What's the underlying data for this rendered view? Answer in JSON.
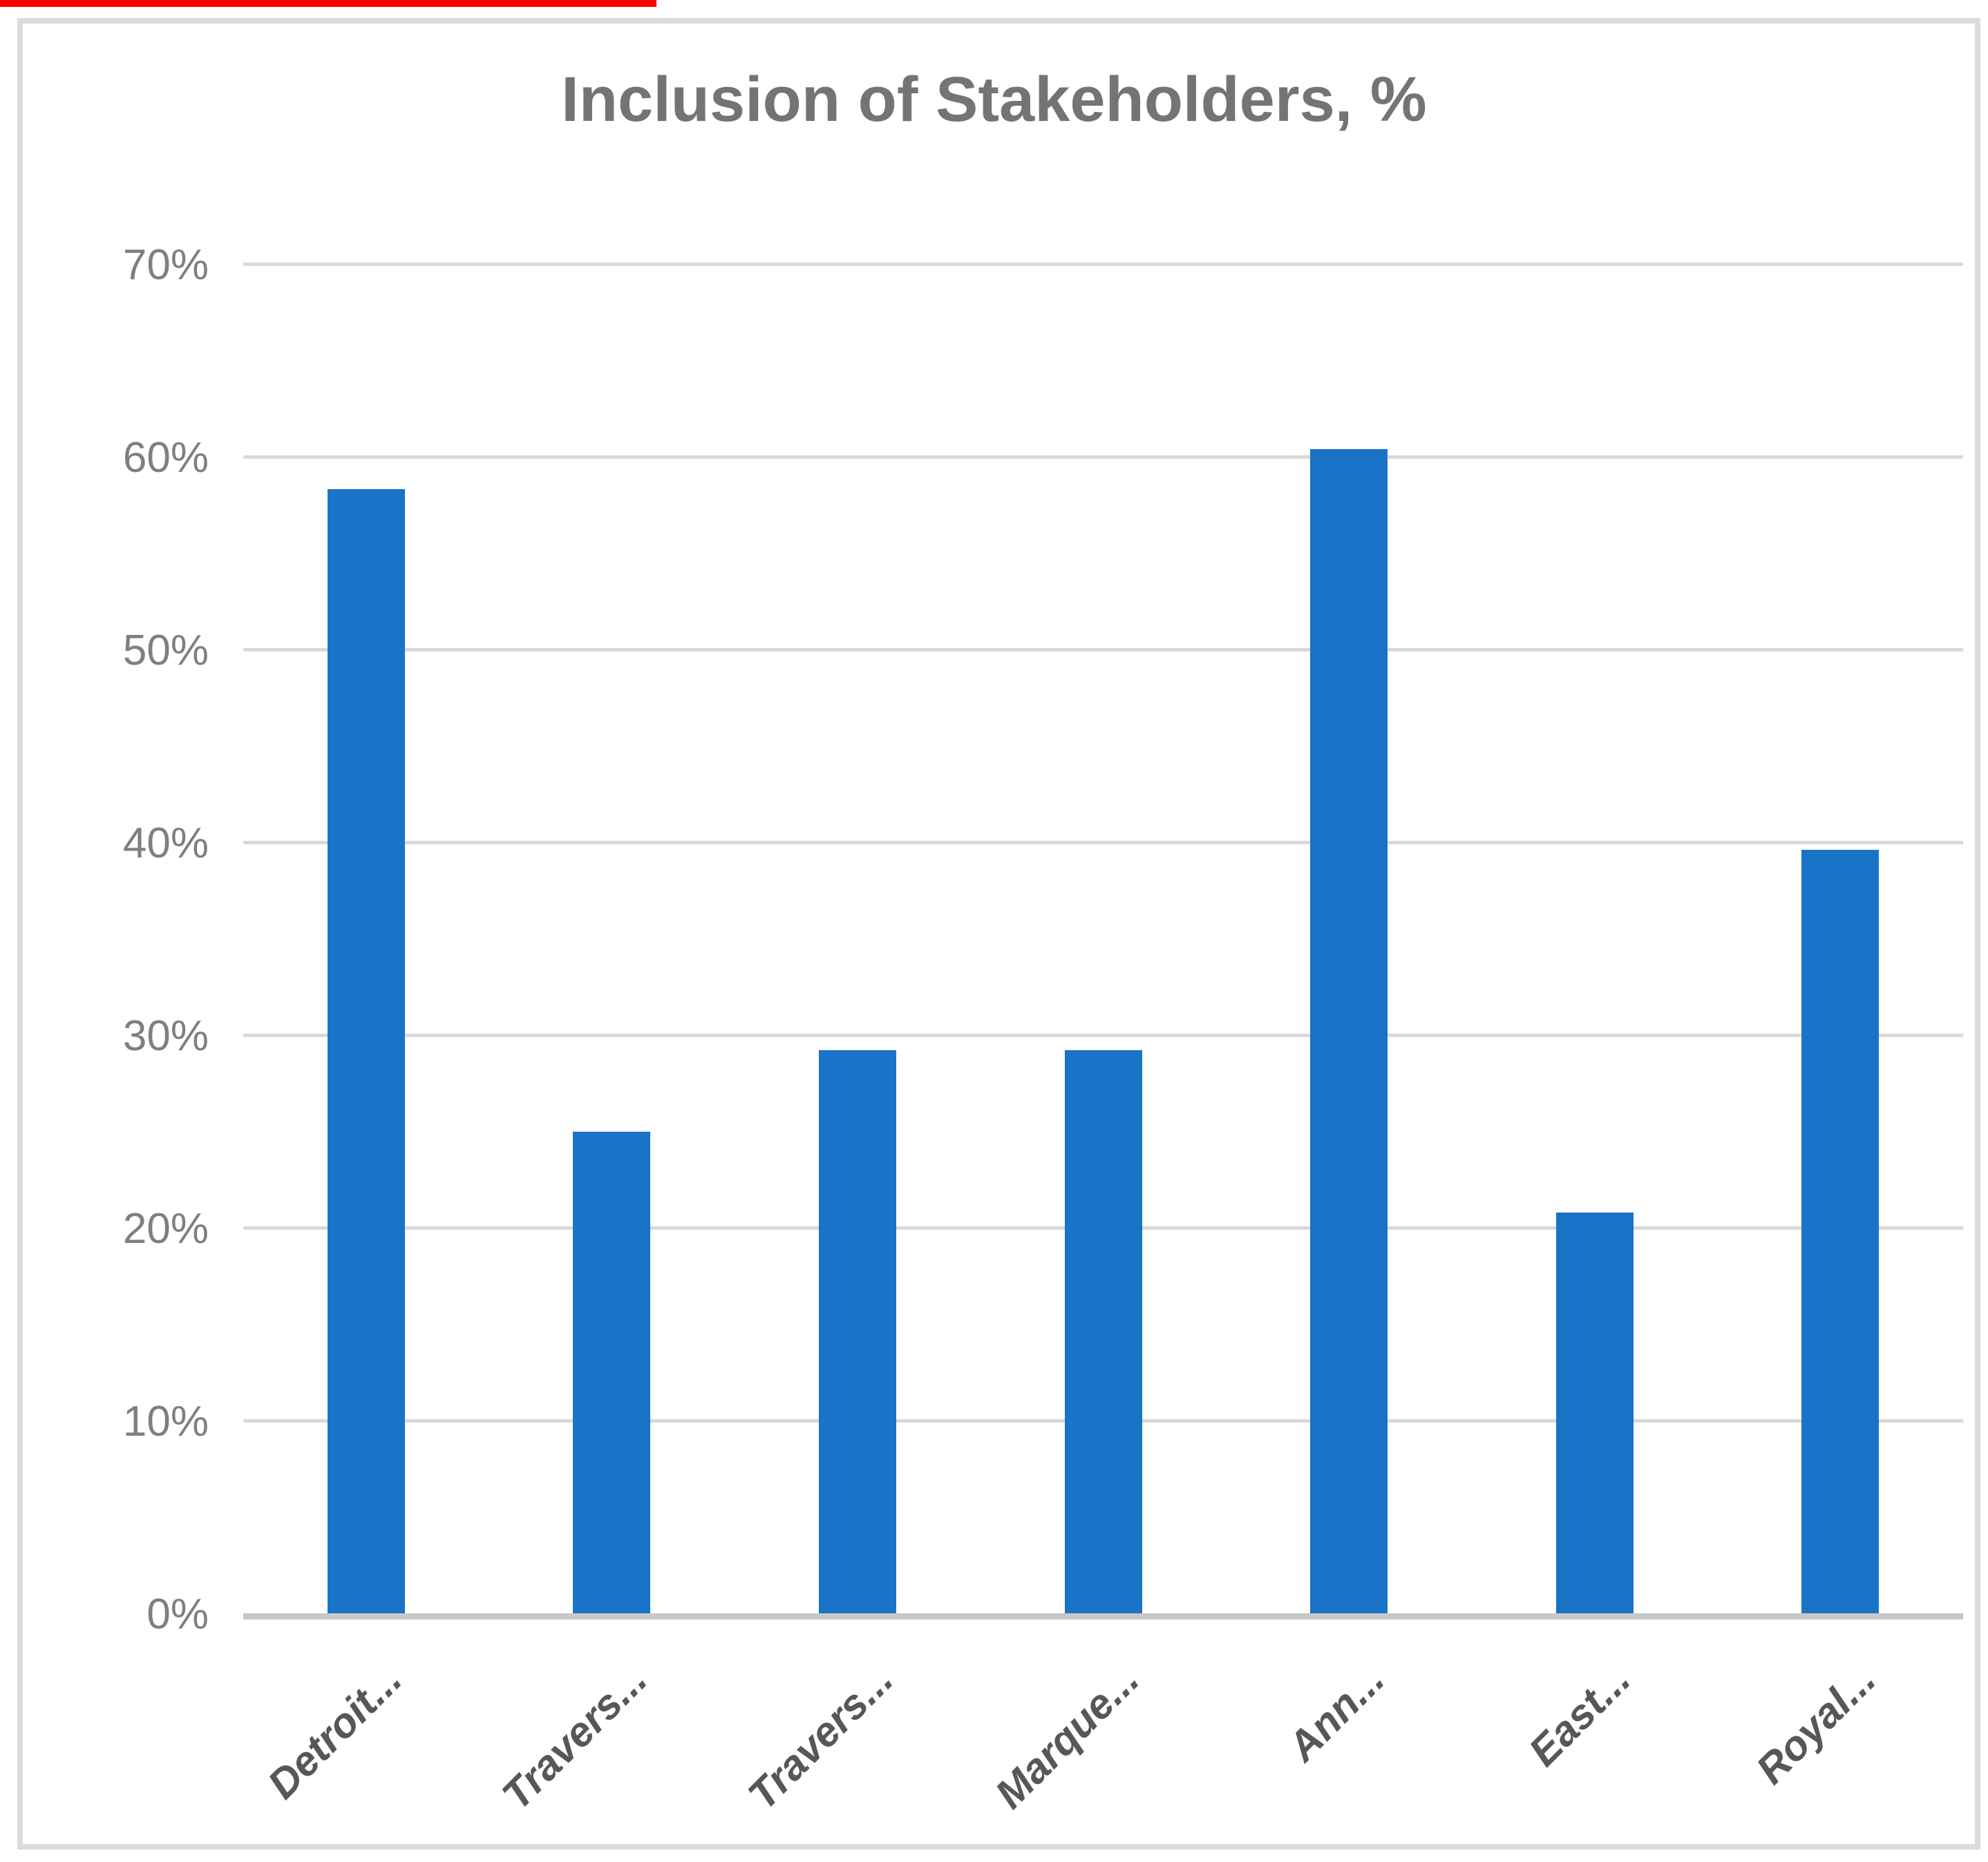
{
  "chart_data": {
    "type": "bar",
    "title": "Inclusion of Stakeholders, %",
    "categories": [
      "Detroit...",
      "Travers...",
      "Travers...",
      "Marque...",
      "Ann...",
      "East...",
      "Royal..."
    ],
    "values": [
      58.3,
      25,
      29.2,
      29.2,
      60.4,
      20.8,
      39.6
    ],
    "series_name": "Inclusion of Stakeholders",
    "xlabel": "",
    "ylabel": "",
    "ylim": [
      0,
      70
    ],
    "yticks": [
      0,
      10,
      20,
      30,
      40,
      50,
      60,
      70
    ],
    "ytick_labels": [
      "0%",
      "10%",
      "20%",
      "30%",
      "40%",
      "50%",
      "60%",
      "70%"
    ],
    "grid": true,
    "legend": "none",
    "bar_color": "#1973c6",
    "gridline_color": "#d9d9d9",
    "axis_line_color": "#c8c8c8",
    "title_color": "#747474",
    "tick_label_color": "#7f7f7f",
    "category_label_color": "#575757",
    "frame_color": "#dbdbdb",
    "top_strip_color": "#fe0000"
  }
}
